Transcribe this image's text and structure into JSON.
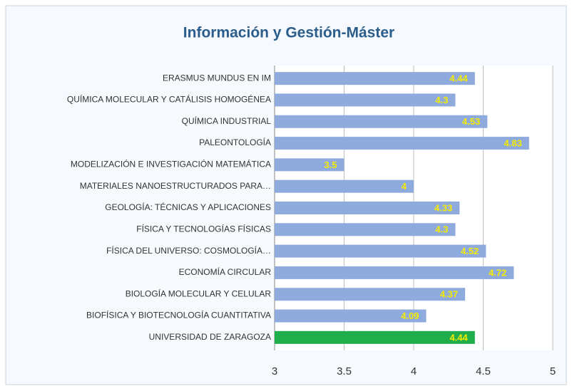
{
  "chart_data": {
    "type": "bar",
    "orientation": "horizontal",
    "title": "Información y Gestión-Máster",
    "categories": [
      "ERASMUS MUNDUS EN IM",
      "QUÍMICA MOLECULAR Y CATÁLISIS HOMOGÉNEA",
      "QUÍMICA INDUSTRIAL",
      "PALEONTOLOGÍA",
      "MODELIZACIÓN E INVESTIGACIÓN MATEMÁTICA",
      "MATERIALES NANOESTRUCTURADOS PARA…",
      "GEOLOGÍA: TÉCNICAS Y APLICACIONES",
      "FÍSICA Y TECNOLOGÍAS FÍSICAS",
      "FÍSICA DEL UNIVERSO: COSMOLOGÍA…",
      "ECONOMÍA CIRCULAR",
      "BIOLOGÍA MOLECULAR Y CELULAR",
      "BIOFÍSICA Y BIOTECNOLOGÍA CUANTITATIVA",
      "UNIVERSIDAD DE ZARAGOZA"
    ],
    "values": [
      4.44,
      4.3,
      4.53,
      4.83,
      3.5,
      4,
      4.33,
      4.3,
      4.52,
      4.72,
      4.37,
      4.09,
      4.44
    ],
    "colors": [
      "#8faadc",
      "#8faadc",
      "#8faadc",
      "#8faadc",
      "#8faadc",
      "#8faadc",
      "#8faadc",
      "#8faadc",
      "#8faadc",
      "#8faadc",
      "#8faadc",
      "#8faadc",
      "#1fae4b"
    ],
    "xlim": [
      3,
      5
    ],
    "xticks": [
      3,
      3.5,
      4,
      4.5,
      5
    ],
    "grid": true
  }
}
